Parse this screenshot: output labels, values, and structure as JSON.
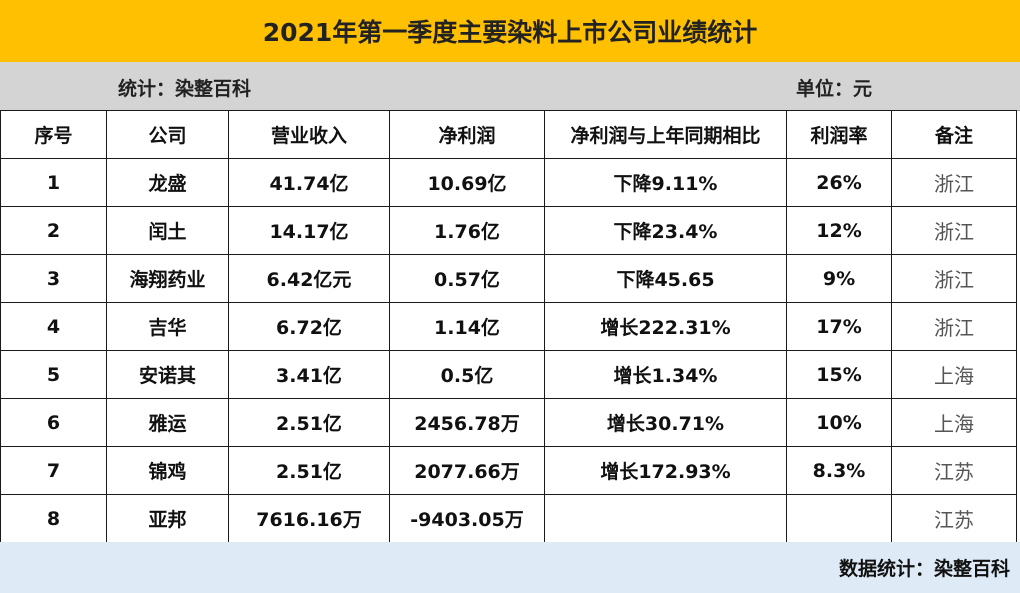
{
  "title": "2021年第一季度主要染料上市公司业绩统计",
  "info": {
    "source_label": "统计：染整百科",
    "unit_label": "单位：元"
  },
  "table": {
    "headers": [
      "序号",
      "公司",
      "营业收入",
      "净利润",
      "净利润与上年同期相比",
      "利润率",
      "备注"
    ],
    "rows": [
      [
        "1",
        "龙盛",
        "41.74亿",
        "10.69亿",
        "下降9.11%",
        "26%",
        "浙江"
      ],
      [
        "2",
        "闰土",
        "14.17亿",
        "1.76亿",
        "下降23.4%",
        "12%",
        "浙江"
      ],
      [
        "3",
        "海翔药业",
        "6.42亿元",
        "0.57亿",
        "下降45.65",
        "9%",
        "浙江"
      ],
      [
        "4",
        "吉华",
        "6.72亿",
        "1.14亿",
        "增长222.31%",
        "17%",
        "浙江"
      ],
      [
        "5",
        "安诺其",
        "3.41亿",
        "0.5亿",
        "增长1.34%",
        "15%",
        "上海"
      ],
      [
        "6",
        "雅运",
        "2.51亿",
        "2456.78万",
        "增长30.71%",
        "10%",
        "上海"
      ],
      [
        "7",
        "锦鸡",
        "2.51亿",
        "2077.66万",
        "增长172.93%",
        "8.3%",
        "江苏"
      ],
      [
        "8",
        "亚邦",
        "7616.16万",
        "-9403.05万",
        "",
        "",
        "江苏"
      ]
    ]
  },
  "footer": {
    "text": "数据统计：染整百科"
  },
  "colors": {
    "title_bg": "#fec000",
    "info_bg": "#d4d4d4",
    "footer_bg": "#deebf7"
  }
}
